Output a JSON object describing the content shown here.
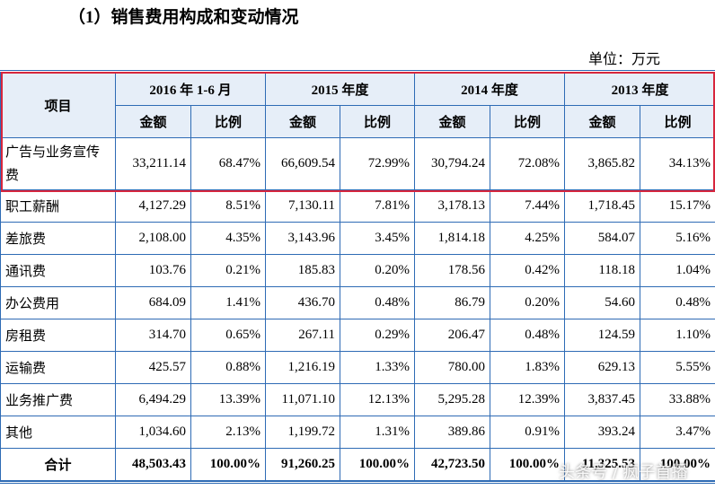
{
  "title": "（1）销售费用构成和变动情况",
  "unit": "单位：万元",
  "table": {
    "item_header": "项目",
    "years": [
      "2016 年 1-6 月",
      "2015 年度",
      "2014 年度",
      "2013 年度"
    ],
    "sub_headers": [
      "金额",
      "比例",
      "金额",
      "比例",
      "金额",
      "比例",
      "金额",
      "比例"
    ],
    "rows": [
      [
        "广告与业务宣传费",
        "33,211.14",
        "68.47%",
        "66,609.54",
        "72.99%",
        "30,794.24",
        "72.08%",
        "3,865.82",
        "34.13%"
      ],
      [
        "职工薪酬",
        "4,127.29",
        "8.51%",
        "7,130.11",
        "7.81%",
        "3,178.13",
        "7.44%",
        "1,718.45",
        "15.17%"
      ],
      [
        "差旅费",
        "2,108.00",
        "4.35%",
        "3,143.96",
        "3.45%",
        "1,814.18",
        "4.25%",
        "584.07",
        "5.16%"
      ],
      [
        "通讯费",
        "103.76",
        "0.21%",
        "185.83",
        "0.20%",
        "178.56",
        "0.42%",
        "118.18",
        "1.04%"
      ],
      [
        "办公费用",
        "684.09",
        "1.41%",
        "436.70",
        "0.48%",
        "86.79",
        "0.20%",
        "54.60",
        "0.48%"
      ],
      [
        "房租费",
        "314.70",
        "0.65%",
        "267.11",
        "0.29%",
        "206.47",
        "0.48%",
        "124.59",
        "1.10%"
      ],
      [
        "运输费",
        "425.57",
        "0.88%",
        "1,216.19",
        "1.33%",
        "780.00",
        "1.83%",
        "629.13",
        "5.55%"
      ],
      [
        "业务推广费",
        "6,494.29",
        "13.39%",
        "11,071.10",
        "12.13%",
        "5,295.28",
        "12.39%",
        "3,837.45",
        "33.88%"
      ],
      [
        "其他",
        "1,034.60",
        "2.13%",
        "1,199.72",
        "1.31%",
        "389.86",
        "0.91%",
        "393.24",
        "3.47%"
      ]
    ],
    "total": [
      "合计",
      "48,503.43",
      "100.00%",
      "91,260.25",
      "100.00%",
      "42,723.50",
      "100.00%",
      "11,325.53",
      "100.00%"
    ]
  },
  "watermark": "头条号 / 疯子首播"
}
